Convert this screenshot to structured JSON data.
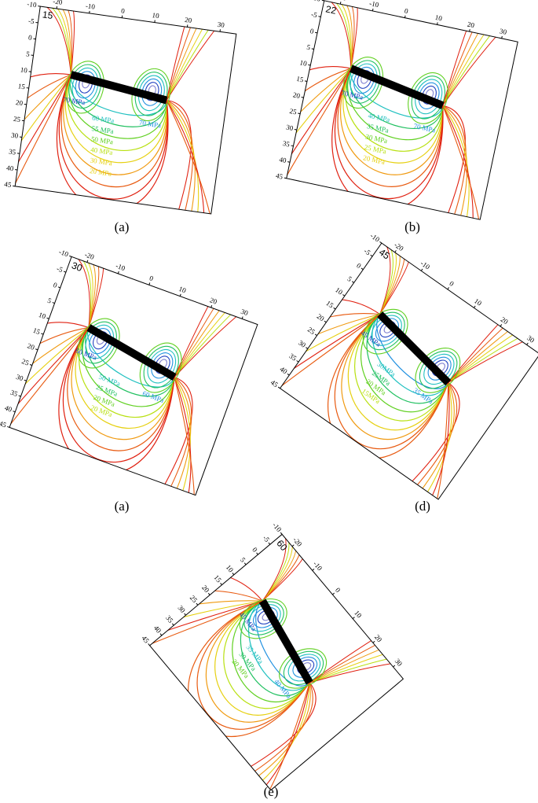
{
  "panels": [
    {
      "angle": "15",
      "caption": "(a)",
      "x_ticks": [
        "-20",
        "-10",
        "0",
        "10",
        "20",
        "30"
      ],
      "y_ticks": [
        "-10",
        "-5",
        "0",
        "5",
        "10",
        "15",
        "20",
        "25",
        "30",
        "35",
        "40",
        "45"
      ],
      "contour_labels": [
        "70 MPa",
        "70 MPa",
        "60 MPa",
        "55 MPa",
        "50 MPa",
        "40 MPa",
        "30 MPa",
        "20 MPa"
      ]
    },
    {
      "angle": "22",
      "caption": "(b)",
      "x_ticks": [
        "-20",
        "-10",
        "0",
        "10",
        "20",
        "30"
      ],
      "y_ticks": [
        "-10",
        "-5",
        "0",
        "5",
        "10",
        "15",
        "20",
        "25",
        "30",
        "35",
        "40",
        "45"
      ],
      "contour_labels": [
        "70 MPa",
        "70 MPa",
        "40 MPa",
        "35 MPa",
        "30 MPa",
        "25 MPa",
        "20 MPa"
      ]
    },
    {
      "angle": "30",
      "caption": "(a)",
      "x_ticks": [
        "-20",
        "-10",
        "0",
        "10",
        "20",
        "30"
      ],
      "y_ticks": [
        "-10",
        "-5",
        "0",
        "5",
        "10",
        "15",
        "20",
        "25",
        "30",
        "35",
        "40",
        "45"
      ],
      "contour_labels": [
        "60 MPa",
        "60 MPa",
        "50 MPa",
        "25 MPa",
        "20 MPa",
        "20 MPa"
      ]
    },
    {
      "angle": "45",
      "caption": "(d)",
      "x_ticks": [
        "-20",
        "-10",
        "0",
        "10",
        "20",
        "30"
      ],
      "y_ticks": [
        "-10",
        "-5",
        "0",
        "5",
        "10",
        "15",
        "20",
        "25",
        "30",
        "35",
        "40",
        "45"
      ],
      "contour_labels": [
        "45 MPa",
        "35 MPa",
        "30MPa",
        "25MPa",
        "20 MPa",
        "15MPa"
      ]
    },
    {
      "angle": "60",
      "caption": "(e)",
      "x_ticks": [
        "-20",
        "-10",
        "0",
        "10",
        "20",
        "30"
      ],
      "y_ticks": [
        "-10",
        "-5",
        "0",
        "5",
        "10",
        "15",
        "20",
        "25",
        "30",
        "35",
        "40",
        "45"
      ],
      "contour_labels": [
        "45 MPa",
        "40 MPa",
        "35 MPa",
        "30 MPa",
        "20 MPa"
      ]
    }
  ]
}
